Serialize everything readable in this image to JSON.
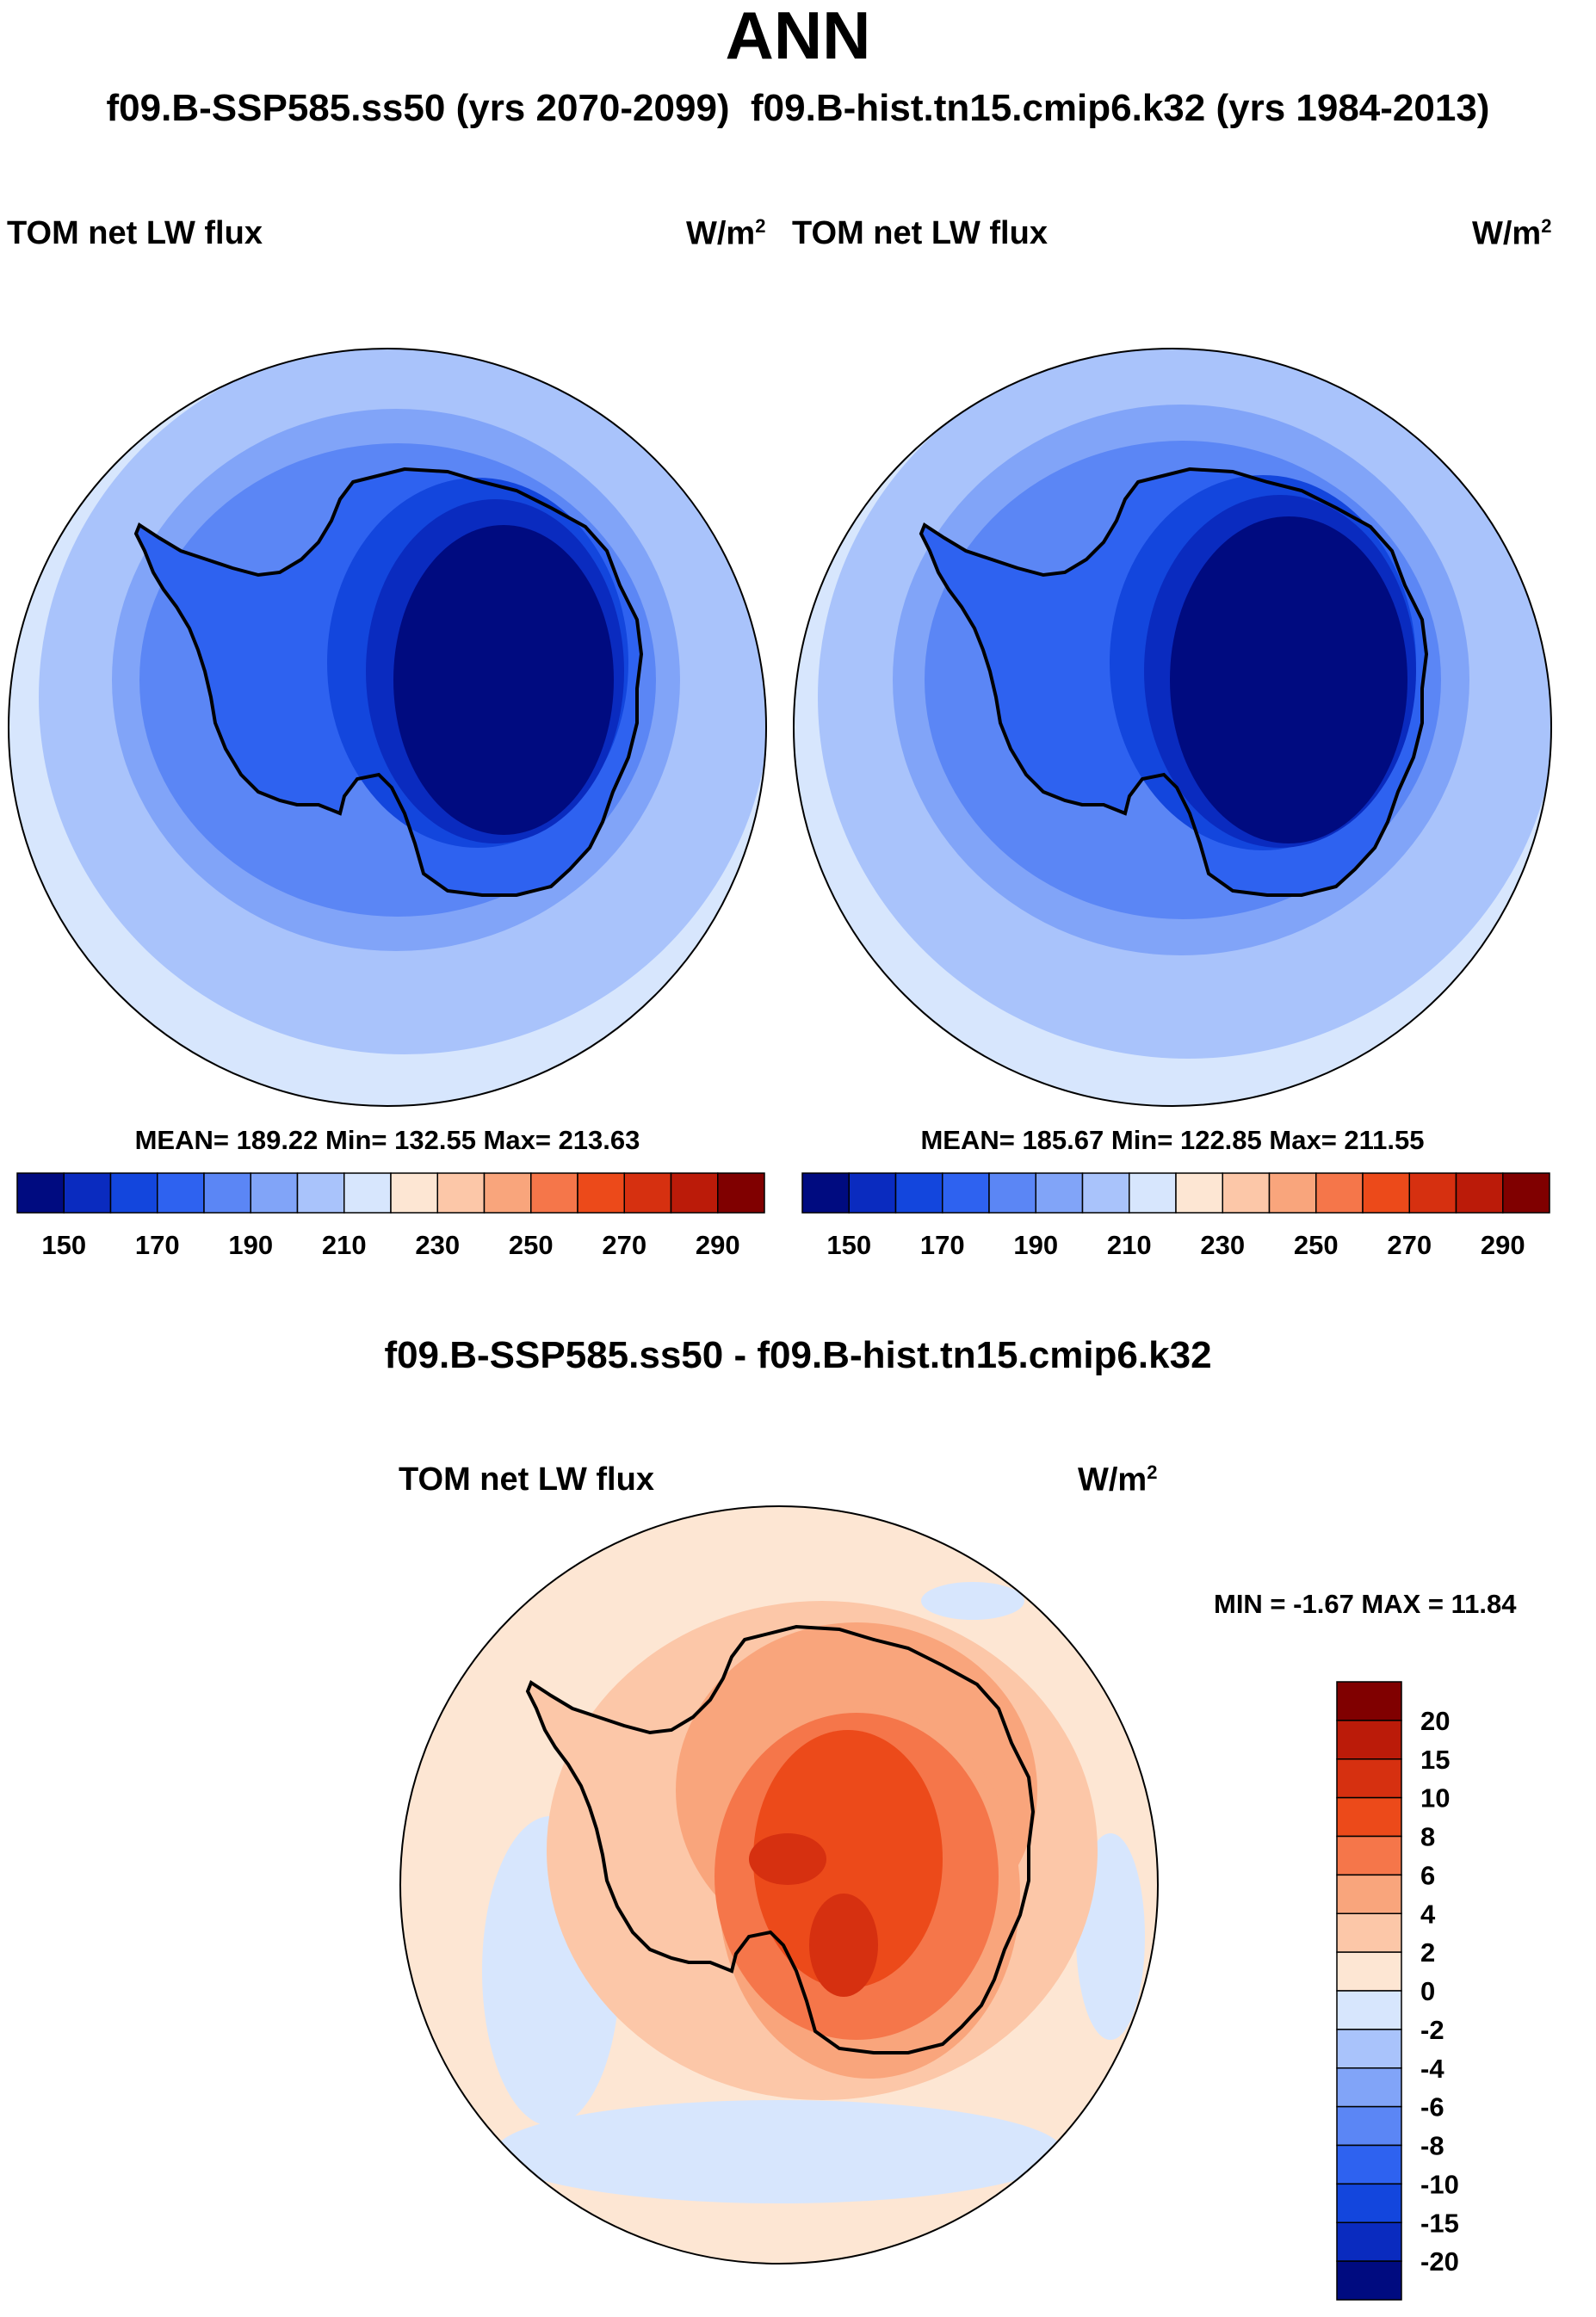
{
  "figure": {
    "title": "ANN",
    "subtitle_case": "f09.B-SSP585.ss50 (yrs 2070-2099)",
    "subtitle_ref": "f09.B-hist.tn15.cmip6.k32 (yrs 1984-2013)",
    "diff_title": "f09.B-SSP585.ss50 - f09.B-hist.tn15.cmip6.k32"
  },
  "chart_data": [
    {
      "type": "heatmap",
      "projection": "south-polar-stereographic",
      "panel": "case",
      "title_left": "TOM net LW flux",
      "units_base": "W/m",
      "units_exp": "2",
      "stats": "MEAN= 189.22  Min= 132.55  Max= 213.63",
      "mean": 189.22,
      "min": 132.55,
      "max": 213.63,
      "levels": [
        150,
        160,
        170,
        180,
        190,
        200,
        210,
        220,
        230,
        240,
        250,
        260,
        270,
        280,
        290
      ],
      "colorbar_labels": [
        "150",
        "170",
        "190",
        "210",
        "230",
        "250",
        "270",
        "290"
      ],
      "colors": [
        "#000b80",
        "#0a2bbf",
        "#1346dd",
        "#2e62f0",
        "#5b86f5",
        "#81a4f8",
        "#a9c3fb",
        "#d7e6fd",
        "#fde6d3",
        "#fcc7a8",
        "#f9a57c",
        "#f5764a",
        "#ec4a1a",
        "#d63010",
        "#bb1b09",
        "#800000"
      ]
    },
    {
      "type": "heatmap",
      "projection": "south-polar-stereographic",
      "panel": "reference",
      "title_left": "TOM net LW flux",
      "units_base": "W/m",
      "units_exp": "2",
      "stats": "MEAN= 185.67  Min= 122.85  Max= 211.55",
      "mean": 185.67,
      "min": 122.85,
      "max": 211.55,
      "levels": [
        150,
        160,
        170,
        180,
        190,
        200,
        210,
        220,
        230,
        240,
        250,
        260,
        270,
        280,
        290
      ],
      "colorbar_labels": [
        "150",
        "170",
        "190",
        "210",
        "230",
        "250",
        "270",
        "290"
      ],
      "colors": [
        "#000b80",
        "#0a2bbf",
        "#1346dd",
        "#2e62f0",
        "#5b86f5",
        "#81a4f8",
        "#a9c3fb",
        "#d7e6fd",
        "#fde6d3",
        "#fcc7a8",
        "#f9a57c",
        "#f5764a",
        "#ec4a1a",
        "#d63010",
        "#bb1b09",
        "#800000"
      ]
    },
    {
      "type": "heatmap",
      "projection": "south-polar-stereographic",
      "panel": "difference",
      "title_left": "TOM net LW flux",
      "units_base": "W/m",
      "units_exp": "2",
      "stats": "MIN =  -1.67 MAX =  11.84",
      "min": -1.67,
      "max": 11.84,
      "levels": [
        -20,
        -15,
        -10,
        -8,
        -6,
        -4,
        -2,
        0,
        2,
        4,
        6,
        8,
        10,
        15,
        20
      ],
      "colorbar_labels": [
        "20",
        "15",
        "10",
        "8",
        "6",
        "4",
        "2",
        "0",
        "-2",
        "-4",
        "-6",
        "-8",
        "-10",
        "-15",
        "-20"
      ],
      "colors": [
        "#000b80",
        "#0a2bbf",
        "#1346dd",
        "#2e62f0",
        "#5b86f5",
        "#81a4f8",
        "#a9c3fb",
        "#d7e6fd",
        "#fde6d3",
        "#fcc7a8",
        "#f9a57c",
        "#f5764a",
        "#ec4a1a",
        "#d63010",
        "#bb1b09",
        "#800000"
      ]
    }
  ]
}
